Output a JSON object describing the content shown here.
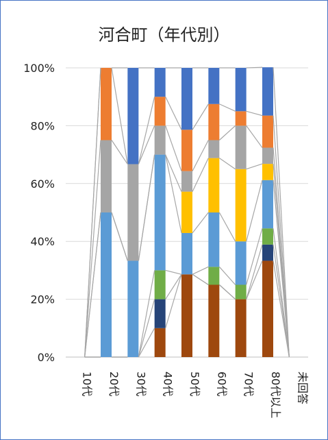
{
  "chart_data": {
    "type": "bar",
    "stacked": true,
    "percent": true,
    "title": "河合町（年代別）",
    "categories": [
      "10代",
      "20代",
      "30代",
      "40代",
      "50代",
      "60代",
      "70代",
      "80代以上",
      "未回答"
    ],
    "yticks": [
      "0%",
      "20%",
      "40%",
      "60%",
      "80%",
      "100%"
    ],
    "ylim": [
      0,
      100
    ],
    "grid": true,
    "legend": "none",
    "series_lines": true,
    "series": [
      {
        "color": "#9e480e",
        "values": [
          0,
          0,
          0,
          10,
          28.6,
          25,
          20,
          33.3,
          0
        ]
      },
      {
        "color": "#264478",
        "values": [
          0,
          0,
          0,
          10,
          0,
          0,
          0,
          5.6,
          0
        ]
      },
      {
        "color": "#70ad47",
        "values": [
          0,
          0,
          0,
          10,
          0,
          6.2,
          5,
          5.6,
          0
        ]
      },
      {
        "color": "#5b9bd5",
        "values": [
          0,
          50,
          33.3,
          40,
          14.3,
          18.8,
          15,
          16.7,
          0
        ]
      },
      {
        "color": "#ffc000",
        "values": [
          0,
          0,
          0,
          0,
          14.3,
          18.8,
          25,
          5.6,
          0
        ]
      },
      {
        "color": "#a5a5a5",
        "values": [
          0,
          25,
          33.4,
          10,
          7.1,
          6.2,
          15,
          5.6,
          0
        ]
      },
      {
        "color": "#ed7d31",
        "values": [
          0,
          25,
          0,
          10,
          14.3,
          12.5,
          5,
          11.1,
          0
        ]
      },
      {
        "color": "#4472c4",
        "values": [
          0,
          0,
          33.3,
          10,
          21.4,
          12.5,
          15,
          16.7,
          0
        ]
      }
    ]
  }
}
